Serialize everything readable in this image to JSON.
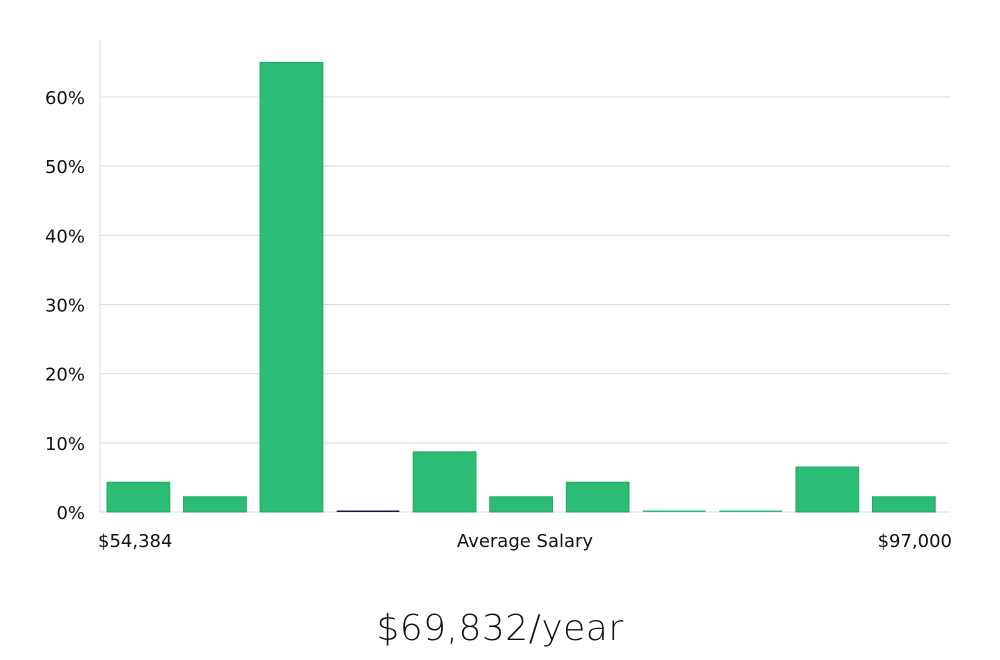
{
  "colors": {
    "bar": "#2bbd75",
    "bar_outline": "#22a866",
    "zero_bar": "#1a1a4a",
    "grid": "#dcdcdc"
  },
  "headline": "$69,832/year",
  "chart_data": {
    "type": "bar",
    "title": "",
    "xlabel": "Average Salary",
    "ylabel": "",
    "x_range_labels": {
      "min": "$54,384",
      "max": "$97,000"
    },
    "ylim": [
      0,
      68
    ],
    "yticks": [
      0,
      10,
      20,
      30,
      40,
      50,
      60
    ],
    "ytick_labels": [
      "0%",
      "10%",
      "20%",
      "30%",
      "40%",
      "50%",
      "60%"
    ],
    "values": [
      4.3,
      2.2,
      65.0,
      0.0,
      8.7,
      2.2,
      4.3,
      0.0,
      0.0,
      6.5,
      2.2
    ],
    "grid": true,
    "legend": "none"
  }
}
